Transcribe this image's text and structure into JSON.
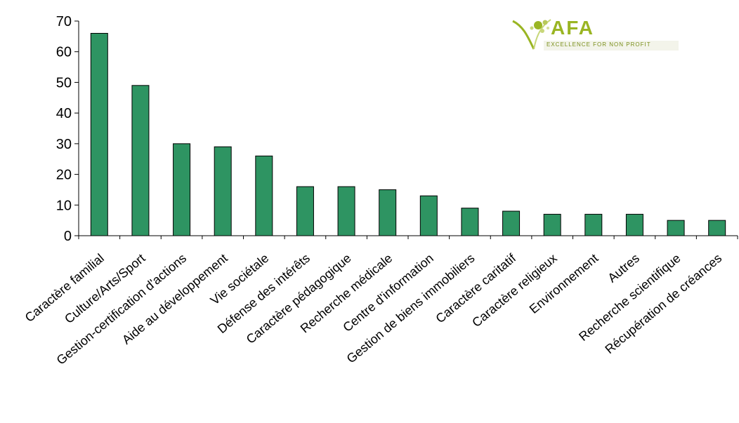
{
  "chart_data": {
    "type": "bar",
    "categories": [
      "Caractère familial",
      "Culture/Arts/Sport",
      "Gestion-certification d'actions",
      "Aide au développement",
      "Vie sociétale",
      "Défense des intérêts",
      "Caractère pédagogique",
      "Recherche médicale",
      "Centre d'information",
      "Gestion de biens immobiliers",
      "Caractère caritatif",
      "Caractère religieux",
      "Environnement",
      "Autres",
      "Recherche scientifique",
      "Récupération de créances"
    ],
    "values": [
      66,
      49,
      30,
      29,
      26,
      16,
      16,
      15,
      13,
      9,
      8,
      7,
      7,
      7,
      5,
      5
    ],
    "ylim": [
      0,
      70
    ],
    "yticks": [
      0,
      10,
      20,
      30,
      40,
      50,
      60,
      70
    ],
    "bar_color": "#2e9462",
    "grid": false,
    "title": "",
    "xlabel": "",
    "ylabel": ""
  },
  "logo": {
    "brand": "AFA",
    "tagline": "EXCELLENCE FOR NON PROFIT",
    "color": "#9ab523"
  }
}
